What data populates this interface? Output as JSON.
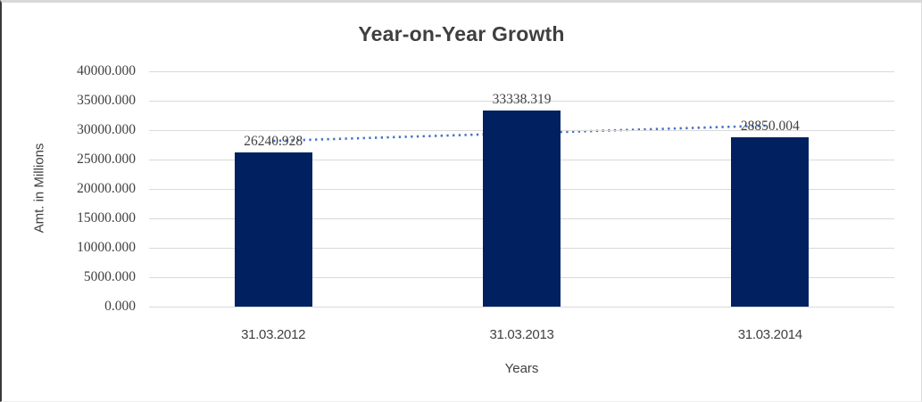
{
  "chart_data": {
    "type": "bar",
    "title": "Year-on-Year Growth",
    "xlabel": "Years",
    "ylabel": "Amt. in Millions",
    "categories": [
      "31.03.2012",
      "31.03.2013",
      "31.03.2014"
    ],
    "values": [
      26240.928,
      33338.319,
      28850.004
    ],
    "data_labels": [
      "26240.928",
      "33338.319",
      "28850.004"
    ],
    "ylim": [
      0,
      40000
    ],
    "ytick_step": 5000,
    "ytick_labels": [
      "0.000",
      "5000.000",
      "10000.000",
      "15000.000",
      "20000.000",
      "25000.000",
      "30000.000",
      "35000.000",
      "40000.000"
    ],
    "grid": true,
    "legend": "none",
    "bar_color": "#002060",
    "gridline_color": "#D9D9D9",
    "text_color": "#404040",
    "trendline": {
      "type": "linear",
      "style": "dotted",
      "color": "#4472C4"
    }
  }
}
